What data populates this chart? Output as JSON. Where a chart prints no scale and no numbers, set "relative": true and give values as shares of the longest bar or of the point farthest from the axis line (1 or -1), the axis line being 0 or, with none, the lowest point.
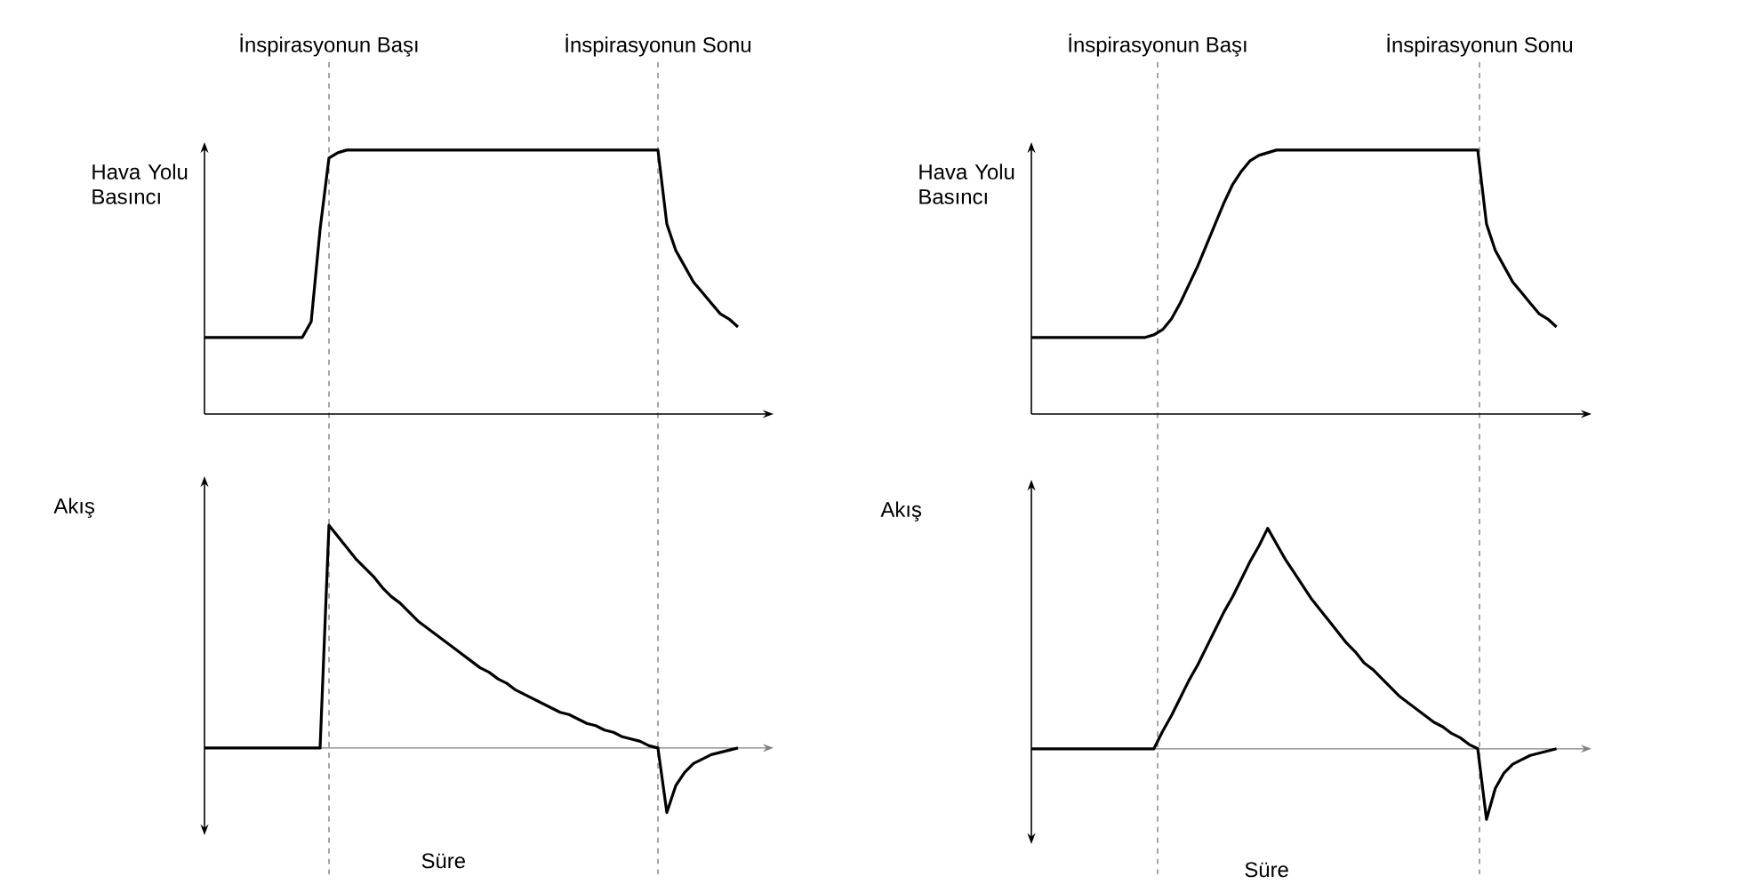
{
  "chart_data": [
    {
      "type": "line",
      "relative": true,
      "ylabel": "Hava Yolu Basıncı",
      "color": "#000000",
      "categories": [
        null,
        null,
        null,
        null,
        null,
        null,
        null,
        null,
        null,
        null,
        null,
        null,
        null,
        null,
        null,
        null,
        null,
        null,
        null,
        null,
        null,
        null,
        null,
        null,
        null,
        null,
        null,
        null,
        null,
        null,
        null,
        null,
        null,
        null,
        null,
        null,
        null,
        null,
        null,
        null,
        null,
        null,
        null,
        null,
        null,
        null,
        null,
        null,
        null,
        null,
        null,
        null,
        null,
        null,
        null,
        null,
        null,
        null,
        null,
        null,
        null
      ],
      "values": [
        0.29,
        0.29,
        0.29,
        0.29,
        0.29,
        0.29,
        0.29,
        0.29,
        0.29,
        0.29,
        0.29,
        0.29,
        0.35,
        0.7,
        0.97,
        0.99,
        1,
        1,
        1,
        1,
        1,
        1,
        1,
        1,
        1,
        1,
        1,
        1,
        1,
        1,
        1,
        1,
        1,
        1,
        1,
        1,
        1,
        1,
        1,
        1,
        1,
        1,
        1,
        1,
        1,
        1,
        1,
        1,
        1,
        1,
        1,
        1,
        0.72,
        0.62,
        0.56,
        0.5,
        0.46,
        0.42,
        0.38,
        0.36,
        0.33
      ],
      "annotations": [
        "İnspirasyonun Başı",
        "İnspirasyonun Sonu"
      ]
    },
    {
      "type": "line",
      "relative": true,
      "ylabel": "Hava Yolu Basıncı",
      "color": "#000000",
      "categories": [
        null,
        null,
        null,
        null,
        null,
        null,
        null,
        null,
        null,
        null,
        null,
        null,
        null,
        null,
        null,
        null,
        null,
        null,
        null,
        null,
        null,
        null,
        null,
        null,
        null,
        null,
        null,
        null,
        null,
        null,
        null,
        null,
        null,
        null,
        null,
        null,
        null,
        null,
        null,
        null,
        null,
        null,
        null,
        null,
        null,
        null,
        null,
        null,
        null,
        null,
        null,
        null,
        null,
        null,
        null,
        null,
        null,
        null,
        null,
        null,
        null
      ],
      "values": [
        0.29,
        0.29,
        0.29,
        0.29,
        0.29,
        0.29,
        0.29,
        0.29,
        0.29,
        0.29,
        0.29,
        0.29,
        0.29,
        0.29,
        0.3,
        0.32,
        0.36,
        0.42,
        0.49,
        0.56,
        0.64,
        0.72,
        0.8,
        0.87,
        0.92,
        0.96,
        0.98,
        0.99,
        1,
        1,
        1,
        1,
        1,
        1,
        1,
        1,
        1,
        1,
        1,
        1,
        1,
        1,
        1,
        1,
        1,
        1,
        1,
        1,
        1,
        1,
        1,
        1,
        0.72,
        0.62,
        0.56,
        0.5,
        0.46,
        0.42,
        0.38,
        0.36,
        0.33
      ],
      "annotations": [
        "İnspirasyonun Başı",
        "İnspirasyonun Sonu"
      ]
    },
    {
      "type": "line",
      "relative": true,
      "ylabel": "Akış",
      "xlabel": "Süre",
      "color": "#000000",
      "categories": [
        null,
        null,
        null,
        null,
        null,
        null,
        null,
        null,
        null,
        null,
        null,
        null,
        null,
        null,
        null,
        null,
        null,
        null,
        null,
        null,
        null,
        null,
        null,
        null,
        null,
        null,
        null,
        null,
        null,
        null,
        null,
        null,
        null,
        null,
        null,
        null,
        null,
        null,
        null,
        null,
        null,
        null,
        null,
        null,
        null,
        null,
        null,
        null,
        null,
        null,
        null,
        null,
        null,
        null,
        null,
        null,
        null,
        null,
        null,
        null,
        null
      ],
      "values": [
        0,
        0,
        0,
        0,
        0,
        0,
        0,
        0,
        0,
        0,
        0,
        0,
        0,
        0,
        1,
        0.95,
        0.9,
        0.85,
        0.81,
        0.77,
        0.72,
        0.68,
        0.65,
        0.61,
        0.57,
        0.54,
        0.51,
        0.48,
        0.45,
        0.42,
        0.39,
        0.36,
        0.34,
        0.31,
        0.29,
        0.26,
        0.24,
        0.22,
        0.2,
        0.18,
        0.16,
        0.15,
        0.13,
        0.11,
        0.1,
        0.08,
        0.07,
        0.05,
        0.04,
        0.03,
        0.01,
        0,
        -0.29,
        -0.17,
        -0.11,
        -0.07,
        -0.05,
        -0.03,
        -0.02,
        -0.01,
        0
      ]
    },
    {
      "type": "line",
      "relative": true,
      "ylabel": "Akış",
      "xlabel": "Süre",
      "color": "#000000",
      "categories": [
        null,
        null,
        null,
        null,
        null,
        null,
        null,
        null,
        null,
        null,
        null,
        null,
        null,
        null,
        null,
        null,
        null,
        null,
        null,
        null,
        null,
        null,
        null,
        null,
        null,
        null,
        null,
        null,
        null,
        null,
        null,
        null,
        null,
        null,
        null,
        null,
        null,
        null,
        null,
        null,
        null,
        null,
        null,
        null,
        null,
        null,
        null,
        null,
        null,
        null,
        null,
        null,
        null,
        null,
        null,
        null,
        null,
        null,
        null,
        null,
        null
      ],
      "values": [
        0,
        0,
        0,
        0,
        0,
        0,
        0,
        0,
        0,
        0,
        0,
        0,
        0,
        0,
        0,
        0.08,
        0.15,
        0.23,
        0.31,
        0.38,
        0.46,
        0.54,
        0.62,
        0.69,
        0.77,
        0.85,
        0.92,
        1,
        0.93,
        0.86,
        0.8,
        0.74,
        0.68,
        0.63,
        0.58,
        0.53,
        0.48,
        0.44,
        0.39,
        0.36,
        0.32,
        0.28,
        0.24,
        0.21,
        0.18,
        0.15,
        0.12,
        0.1,
        0.07,
        0.05,
        0.02,
        0,
        -0.32,
        -0.18,
        -0.11,
        -0.07,
        -0.05,
        -0.03,
        -0.02,
        -0.01,
        0
      ]
    }
  ]
}
